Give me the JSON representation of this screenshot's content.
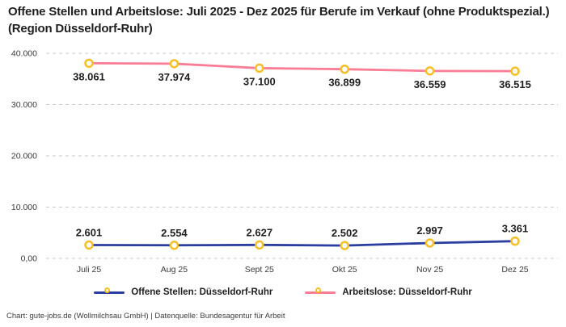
{
  "header": {
    "title": "Offene Stellen und Arbeitslose: Juli 2025 - Dez 2025 für Berufe im Verkauf (ohne Produktspezial.) (Region Düsseldorf-Ruhr)"
  },
  "colors": {
    "offene_stellen": "#2b3d9e",
    "arbeitslose": "#f97e95",
    "marker_ring": "#f6bf26",
    "marker_fill": "#ffffff",
    "grid": "#c9c9c9",
    "axis_text": "#3a3a3a",
    "label_text": "#1f1f1f"
  },
  "chart_data": {
    "type": "line",
    "title": "Offene Stellen und Arbeitslose: Juli 2025 - Dez 2025 für Berufe im Verkauf (ohne Produktspezial.) (Region Düsseldorf-Ruhr)",
    "categories": [
      "Juli 25",
      "Aug 25",
      "Sept 25",
      "Okt 25",
      "Nov 25",
      "Dez 25"
    ],
    "series": [
      {
        "name": "Offene Stellen: Düsseldorf-Ruhr",
        "values": [
          2601,
          2554,
          2627,
          2502,
          2997,
          3361
        ],
        "labels": [
          "2.601",
          "2.554",
          "2.627",
          "2.502",
          "2.997",
          "3.361"
        ],
        "color_key": "offene_stellen",
        "label_position": "above"
      },
      {
        "name": "Arbeitslose: Düsseldorf-Ruhr",
        "values": [
          38061,
          37974,
          37100,
          36899,
          36559,
          36515
        ],
        "labels": [
          "38.061",
          "37.974",
          "37.100",
          "36.899",
          "36.559",
          "36.515"
        ],
        "color_key": "arbeitslose",
        "label_position": "below"
      }
    ],
    "y_ticks": [
      {
        "value": 0,
        "label": "0,00"
      },
      {
        "value": 10000,
        "label": "10.000"
      },
      {
        "value": 20000,
        "label": "20.000"
      },
      {
        "value": 30000,
        "label": "30.000"
      },
      {
        "value": 40000,
        "label": "40.000"
      }
    ],
    "ylim": [
      0,
      40000
    ],
    "grid": "dashed-horizontal",
    "legend_position": "bottom"
  },
  "legend": {
    "items": [
      {
        "label": "Offene Stellen: Düsseldorf-Ruhr",
        "color_key": "offene_stellen"
      },
      {
        "label": "Arbeitslose: Düsseldorf-Ruhr",
        "color_key": "arbeitslose"
      }
    ]
  },
  "footer": {
    "credit": "Chart: gute-jobs.de (Wollmilchsau GmbH) | Datenquelle: Bundesagentur für Arbeit"
  }
}
